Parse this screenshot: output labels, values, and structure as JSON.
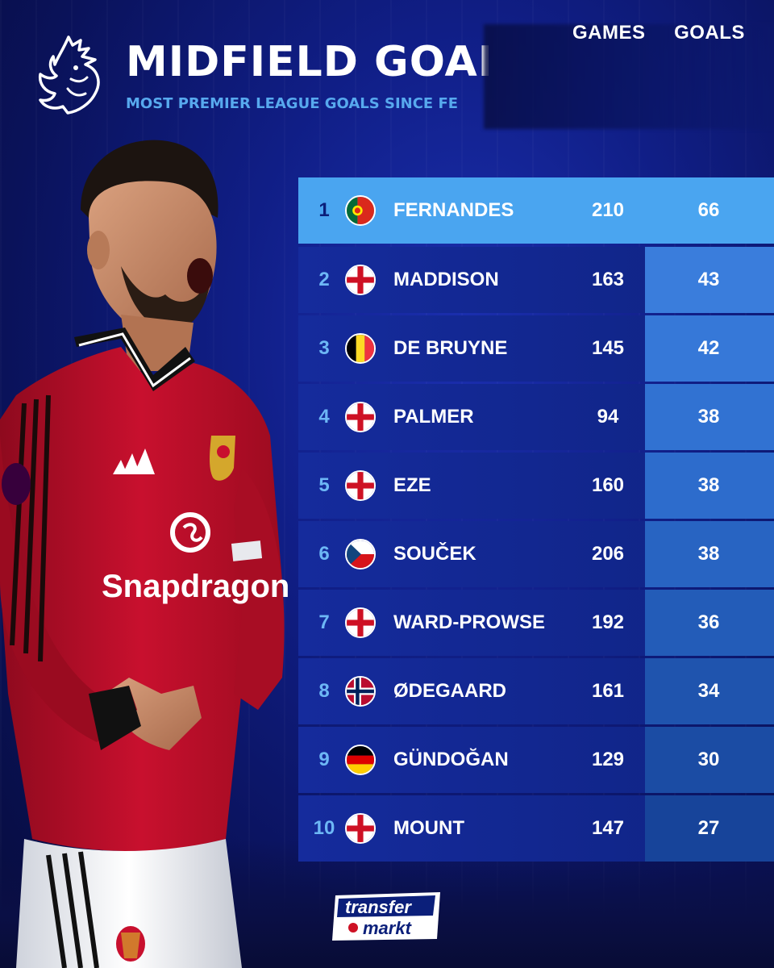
{
  "header": {
    "title": "MIDFIELD GOAL",
    "subtitle": "MOST PREMIER LEAGUE GOALS SINCE FE"
  },
  "table": {
    "columns": {
      "games": "GAMES",
      "goals": "GOALS"
    },
    "rows": [
      {
        "rank": "1",
        "flag": "portugal-flag-icon",
        "name": "FERNANDES",
        "games": "210",
        "goals": "66"
      },
      {
        "rank": "2",
        "flag": "england-flag-icon",
        "name": "MADDISON",
        "games": "163",
        "goals": "43"
      },
      {
        "rank": "3",
        "flag": "belgium-flag-icon",
        "name": "DE BRUYNE",
        "games": "145",
        "goals": "42"
      },
      {
        "rank": "4",
        "flag": "england-flag-icon",
        "name": "PALMER",
        "games": "94",
        "goals": "38"
      },
      {
        "rank": "5",
        "flag": "england-flag-icon",
        "name": "EZE",
        "games": "160",
        "goals": "38"
      },
      {
        "rank": "6",
        "flag": "czech-flag-icon",
        "name": "SOUČEK",
        "games": "206",
        "goals": "38"
      },
      {
        "rank": "7",
        "flag": "england-flag-icon",
        "name": "WARD-PROWSE",
        "games": "192",
        "goals": "36"
      },
      {
        "rank": "8",
        "flag": "norway-flag-icon",
        "name": "ØDEGAARD",
        "games": "161",
        "goals": "34"
      },
      {
        "rank": "9",
        "flag": "germany-flag-icon",
        "name": "GÜNDOĞAN",
        "games": "129",
        "goals": "30"
      },
      {
        "rank": "10",
        "flag": "england-flag-icon",
        "name": "MOUNT",
        "games": "147",
        "goals": "27"
      }
    ]
  },
  "player_shirt": {
    "sponsor": "Snapdragon"
  },
  "brand": {
    "line1": "transfer",
    "line2": "markt"
  },
  "colors": {
    "background": "#101e86",
    "row": "#152b9c",
    "goals_cell": "#2f6fd2",
    "highlight_row": "#4aa5f0",
    "accent_text": "#57a9ee",
    "shirt_red": "#c8102e"
  }
}
